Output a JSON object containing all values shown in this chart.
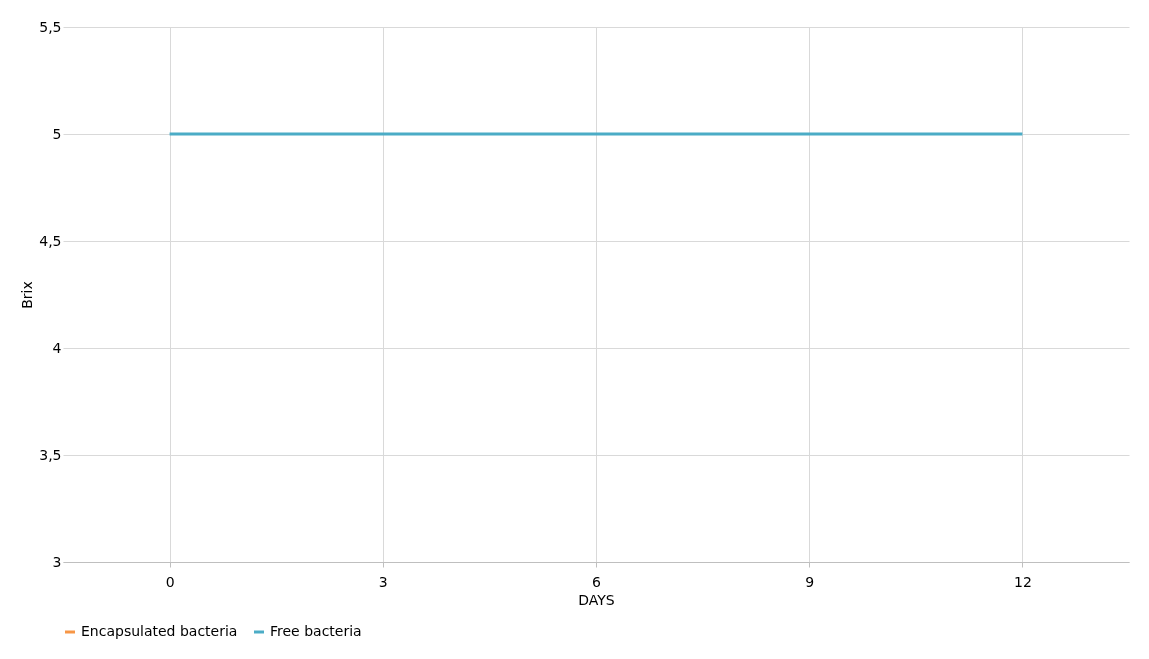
{
  "chart_data": {
    "type": "line",
    "xlabel": "DAYS",
    "ylabel": "Brix",
    "categories": [
      "0",
      "3",
      "6",
      "9",
      "12"
    ],
    "series": [
      {
        "name": "Encapsulated bacteria",
        "color": "#f79646",
        "values": [
          null,
          null,
          null,
          null,
          null
        ]
      },
      {
        "name": "Free bacteria",
        "color": "#4bacc6",
        "values": [
          5,
          5,
          5,
          5,
          5
        ]
      }
    ],
    "ylim": [
      3,
      5.5
    ],
    "yticks": [
      3,
      {
        "value": 3.5,
        "label": "3,5"
      },
      4,
      {
        "value": 4.5,
        "label": "4,5"
      },
      5,
      {
        "value": 5.5,
        "label": "5,5"
      }
    ],
    "grid": true,
    "legend": "bottom",
    "marker": "none",
    "line_style": "solid"
  }
}
